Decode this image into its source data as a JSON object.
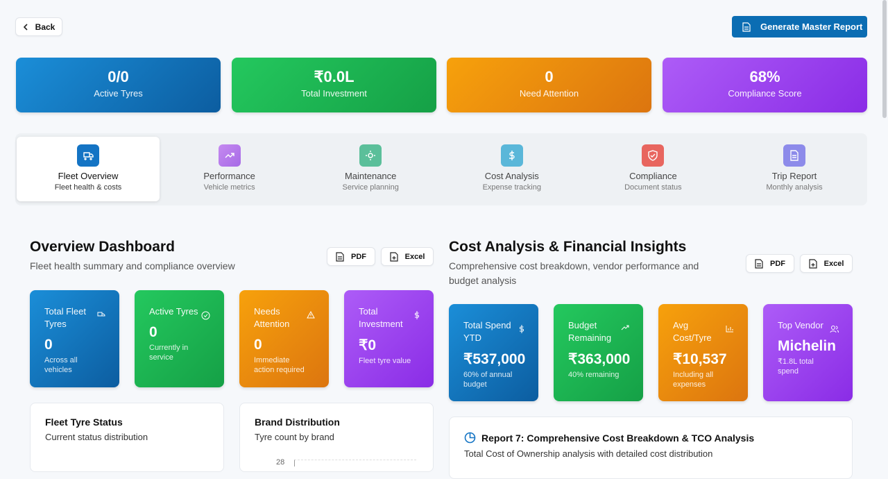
{
  "header": {
    "back": "Back",
    "report_button": "Generate Master Report"
  },
  "kpis": [
    {
      "value": "0/0",
      "label": "Active Tyres"
    },
    {
      "value": "₹0.0L",
      "label": "Total Investment"
    },
    {
      "value": "0",
      "label": "Need Attention"
    },
    {
      "value": "68%",
      "label": "Compliance Score"
    }
  ],
  "tabs": [
    {
      "title": "Fleet Overview",
      "subtitle": "Fleet health & costs"
    },
    {
      "title": "Performance",
      "subtitle": "Vehicle metrics"
    },
    {
      "title": "Maintenance",
      "subtitle": "Service planning"
    },
    {
      "title": "Cost Analysis",
      "subtitle": "Expense tracking"
    },
    {
      "title": "Compliance",
      "subtitle": "Document status"
    },
    {
      "title": "Trip Report",
      "subtitle": "Monthly analysis"
    }
  ],
  "overview": {
    "title": "Overview Dashboard",
    "subtitle": "Fleet health summary and compliance overview",
    "pdf": "PDF",
    "excel": "Excel",
    "cards": [
      {
        "title": "Total Fleet Tyres",
        "value": "0",
        "note": "Across all vehicles"
      },
      {
        "title": "Active Tyres",
        "value": "0",
        "note": "Currently in service"
      },
      {
        "title": "Needs Attention",
        "value": "0",
        "note": "Immediate action required"
      },
      {
        "title": "Total Investment",
        "value": "₹0",
        "note": "Fleet tyre value"
      }
    ],
    "panels": [
      {
        "title": "Fleet Tyre Status",
        "subtitle": "Current status distribution"
      },
      {
        "title": "Brand Distribution",
        "subtitle": "Tyre count by brand",
        "tick": "28"
      }
    ]
  },
  "cost": {
    "title": "Cost Analysis & Financial Insights",
    "subtitle": "Comprehensive cost breakdown, vendor performance and budget analysis",
    "pdf": "PDF",
    "excel": "Excel",
    "cards": [
      {
        "title": "Total Spend YTD",
        "value": "₹537,000",
        "note": "60% of annual budget"
      },
      {
        "title": "Budget Remaining",
        "value": "₹363,000",
        "note": "40% remaining"
      },
      {
        "title": "Avg Cost/Tyre",
        "value": "₹10,537",
        "note": "Including all expenses"
      },
      {
        "title": "Top Vendor",
        "value": "Michelin",
        "note": "₹1.8L total spend"
      }
    ],
    "report": {
      "title": "Report 7: Comprehensive Cost Breakdown & TCO Analysis",
      "subtitle": "Total Cost of Ownership analysis with detailed cost distribution"
    }
  }
}
